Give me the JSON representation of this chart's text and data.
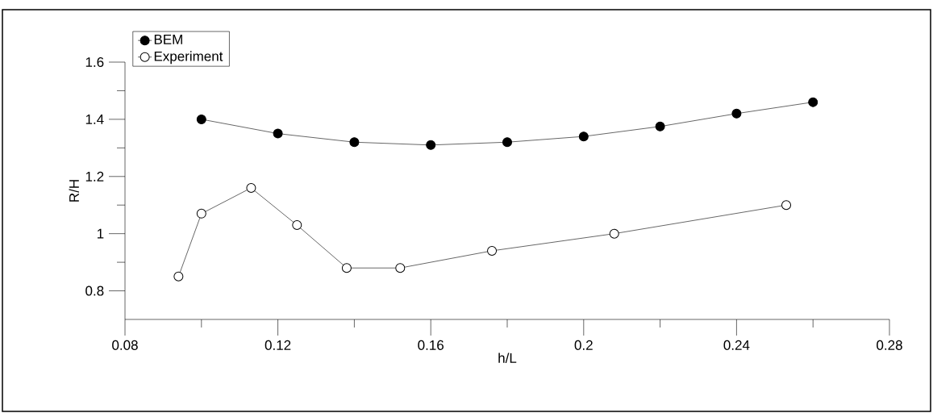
{
  "chart_data": {
    "type": "line",
    "xlabel": "h/L",
    "ylabel": "R/H",
    "xlim": [
      0.08,
      0.28
    ],
    "ylim": [
      0.7,
      1.6
    ],
    "xticks": [
      0.08,
      {
        "value": 0.1,
        "label": null
      },
      0.12,
      {
        "value": 0.14,
        "label": null
      },
      0.16,
      {
        "value": 0.18,
        "label": null
      },
      0.2,
      {
        "value": 0.22,
        "label": null
      },
      0.24,
      {
        "value": 0.26,
        "label": null
      },
      0.28
    ],
    "yticks": [
      0.8,
      {
        "value": 0.9,
        "label": null
      },
      1,
      {
        "value": 1.1,
        "label": null
      },
      1.2,
      {
        "value": 1.3,
        "label": null
      },
      1.4,
      {
        "value": 1.5,
        "label": null
      },
      1.6
    ],
    "legend": "top left",
    "marker": "circle",
    "line_style": "solid",
    "grid": false,
    "series": [
      {
        "name": "BEM",
        "color": "#000000",
        "x": [
          0.1,
          0.12,
          0.14,
          0.16,
          0.18,
          0.2,
          0.22,
          0.24,
          0.26
        ],
        "values": [
          1.4,
          1.35,
          1.32,
          1.31,
          1.32,
          1.34,
          1.375,
          1.42,
          1.46
        ]
      },
      {
        "name": "Experiment",
        "color": "#ffffff",
        "x": [
          0.094,
          0.1,
          0.113,
          0.125,
          0.138,
          0.152,
          0.176,
          0.208,
          0.253
        ],
        "values": [
          0.85,
          1.07,
          1.16,
          1.03,
          0.88,
          0.88,
          0.94,
          1.0,
          1.1
        ]
      }
    ]
  }
}
